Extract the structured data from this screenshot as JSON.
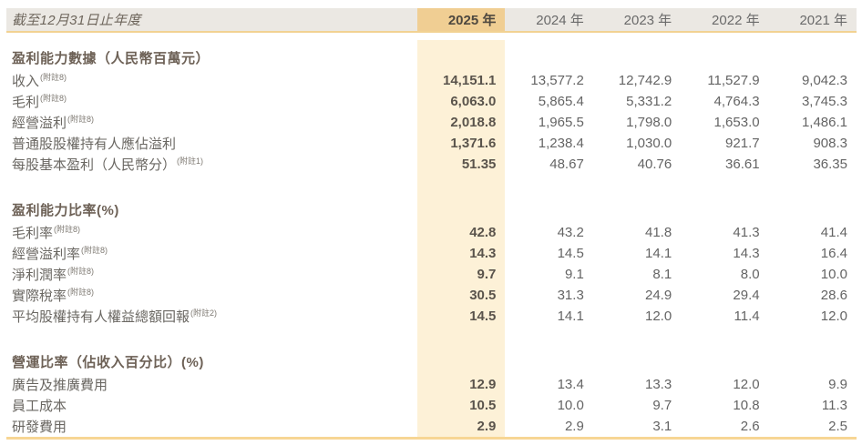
{
  "table": {
    "header": {
      "period_label": "截至12月31日止年度",
      "years": [
        "2025 年",
        "2024 年",
        "2023 年",
        "2022 年",
        "2021 年"
      ]
    },
    "sections": [
      {
        "title": "盈利能力數據（人民幣百萬元）",
        "rows": [
          {
            "label": "收入",
            "note": "(附註8)",
            "values": [
              "14,151.1",
              "13,577.2",
              "12,742.9",
              "11,527.9",
              "9,042.3"
            ]
          },
          {
            "label": "毛利",
            "note": "(附註8)",
            "values": [
              "6,063.0",
              "5,865.4",
              "5,331.2",
              "4,764.3",
              "3,745.3"
            ]
          },
          {
            "label": "經營溢利",
            "note": "(附註8)",
            "values": [
              "2,018.8",
              "1,965.5",
              "1,798.0",
              "1,653.0",
              "1,486.1"
            ]
          },
          {
            "label": "普通股股權持有人應佔溢利",
            "note": "",
            "values": [
              "1,371.6",
              "1,238.4",
              "1,030.0",
              "921.7",
              "908.3"
            ]
          },
          {
            "label": "每股基本盈利（人民幣分）",
            "note": "(附註1)",
            "values": [
              "51.35",
              "48.67",
              "40.76",
              "36.61",
              "36.35"
            ]
          }
        ]
      },
      {
        "title": "盈利能力比率(%)",
        "rows": [
          {
            "label": "毛利率",
            "note": "(附註8)",
            "values": [
              "42.8",
              "43.2",
              "41.8",
              "41.3",
              "41.4"
            ]
          },
          {
            "label": "經營溢利率",
            "note": "(附註8)",
            "values": [
              "14.3",
              "14.5",
              "14.1",
              "14.3",
              "16.4"
            ]
          },
          {
            "label": "淨利潤率",
            "note": "(附註8)",
            "values": [
              "9.7",
              "9.1",
              "8.1",
              "8.0",
              "10.0"
            ]
          },
          {
            "label": "實際稅率",
            "note": "(附註8)",
            "values": [
              "30.5",
              "31.3",
              "24.9",
              "29.4",
              "28.6"
            ]
          },
          {
            "label": "平均股權持有人權益總額回報",
            "note": "(附註2)",
            "values": [
              "14.5",
              "14.1",
              "12.0",
              "11.4",
              "12.0"
            ]
          }
        ]
      },
      {
        "title": "營運比率（佔收入百分比）(%)",
        "rows": [
          {
            "label": "廣告及推廣費用",
            "note": "",
            "values": [
              "12.9",
              "13.4",
              "13.3",
              "12.0",
              "9.9"
            ]
          },
          {
            "label": "員工成本",
            "note": "",
            "values": [
              "10.5",
              "10.0",
              "9.7",
              "10.8",
              "11.3"
            ]
          },
          {
            "label": "研發費用",
            "note": "",
            "values": [
              "2.9",
              "2.9",
              "3.1",
              "2.6",
              "2.5"
            ]
          }
        ]
      }
    ]
  },
  "colors": {
    "highlight_column": "#fdf1d7",
    "highlight_header": "#f0ce93",
    "header_band": "#ebe8e3",
    "rule_gold": "#f2d292",
    "bottom_rule": "#f7d694",
    "text_primary": "#6a6762",
    "text_bold_highlight": "#5a544c"
  }
}
